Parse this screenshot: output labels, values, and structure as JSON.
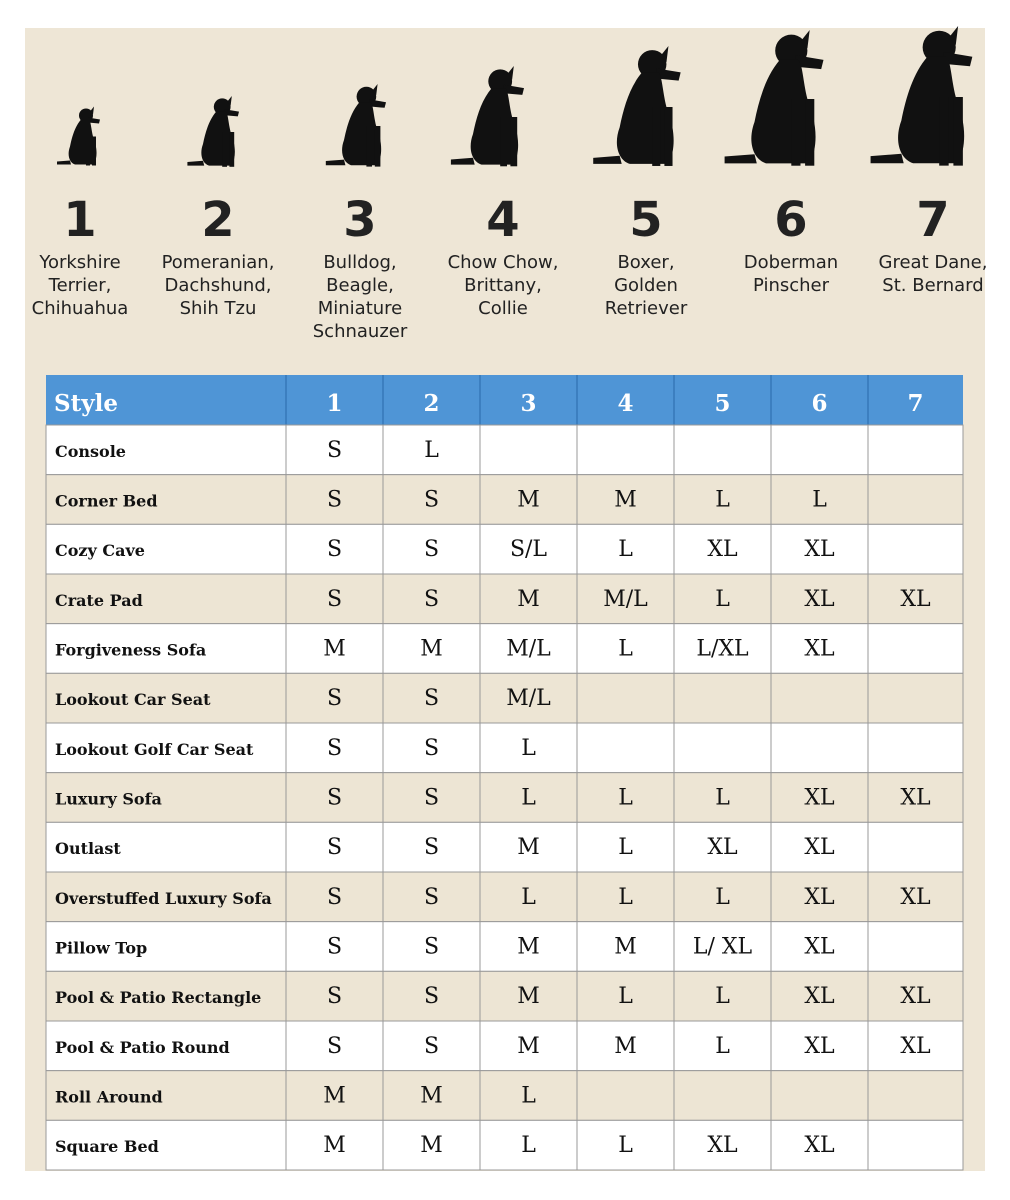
{
  "breeds": [
    {
      "number": "1",
      "name_lines": [
        "Yorkshire",
        "Terrier,",
        "Chihuahua"
      ]
    },
    {
      "number": "2",
      "name_lines": [
        "Pomeranian,",
        "Dachshund,",
        "Shih Tzu"
      ]
    },
    {
      "number": "3",
      "name_lines": [
        "Bulldog,",
        "Beagle,",
        "Miniature",
        "Schnauzer"
      ]
    },
    {
      "number": "4",
      "name_lines": [
        "Chow Chow,",
        "Brittany,",
        "Collie"
      ]
    },
    {
      "number": "5",
      "name_lines": [
        "Boxer,",
        "Golden",
        "Retriever"
      ]
    },
    {
      "number": "6",
      "name_lines": [
        "Doberman",
        "Pinscher"
      ]
    },
    {
      "number": "7",
      "name_lines": [
        "Great Dane,",
        "St. Bernard"
      ]
    }
  ],
  "table": {
    "header": [
      "Style",
      "1",
      "2",
      "3",
      "4",
      "5",
      "6",
      "7"
    ],
    "rows": [
      [
        "Console",
        "S",
        "L",
        null,
        null,
        null,
        null,
        null
      ],
      [
        "Corner Bed",
        "S",
        "S",
        "M",
        "M",
        "L",
        "L",
        null
      ],
      [
        "Cozy Cave",
        "S",
        "S",
        "S/L",
        "L",
        "XL",
        "XL",
        null
      ],
      [
        "Crate Pad",
        "S",
        "S",
        "M",
        "M/L",
        "L",
        "XL",
        "XL"
      ],
      [
        "Forgiveness Sofa",
        "M",
        "M",
        "M/L",
        "L",
        "L/XL",
        "XL",
        null
      ],
      [
        "Lookout Car Seat",
        "S",
        "S",
        "M/L",
        null,
        null,
        null,
        null
      ],
      [
        "Lookout Golf Car Seat",
        "S",
        "S",
        "L",
        null,
        null,
        null,
        null
      ],
      [
        "Luxury Sofa",
        "S",
        "S",
        "L",
        "L",
        "L",
        "XL",
        "XL"
      ],
      [
        "Outlast",
        "S",
        "S",
        "M",
        "L",
        "XL",
        "XL",
        null
      ],
      [
        "Overstuffed Luxury Sofa",
        "S",
        "S",
        "L",
        "L",
        "L",
        "XL",
        "XL"
      ],
      [
        "Pillow Top",
        "S",
        "S",
        "M",
        "M",
        "L/ XL",
        "XL",
        null
      ],
      [
        "Pool & Patio Rectangle",
        "S",
        "S",
        "M",
        "L",
        "L",
        "XL",
        "XL"
      ],
      [
        "Pool & Patio Round",
        "S",
        "S",
        "M",
        "M",
        "L",
        "XL",
        "XL"
      ],
      [
        "Roll Around",
        "M",
        "M",
        "L",
        null,
        null,
        null,
        null
      ],
      [
        "Square Bed",
        "M",
        "M",
        "L",
        "L",
        "XL",
        "XL",
        null
      ]
    ]
  }
}
